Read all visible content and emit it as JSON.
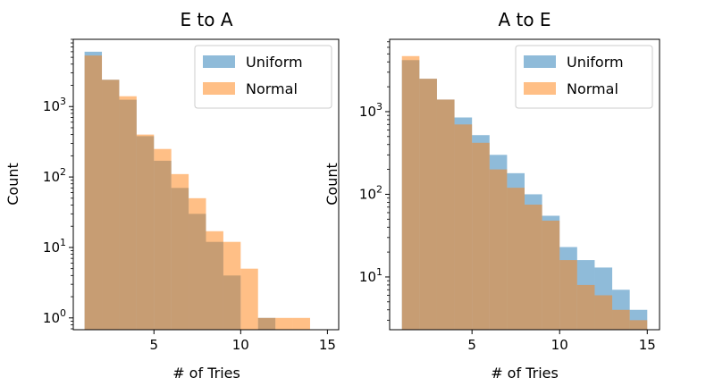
{
  "chart_data": [
    {
      "type": "bar",
      "title": "E to A",
      "xlabel": "# of Tries",
      "ylabel": "Count",
      "yscale": "log",
      "xlim": [
        0.35,
        15.65
      ],
      "ylim": [
        0.68,
        9000
      ],
      "xticks": [
        5,
        10,
        15
      ],
      "yticks": [
        {
          "value": 1,
          "base": "10",
          "exp": "0"
        },
        {
          "value": 10,
          "base": "10",
          "exp": "1"
        },
        {
          "value": 100,
          "base": "10",
          "exp": "2"
        },
        {
          "value": 1000,
          "base": "10",
          "exp": "3"
        }
      ],
      "legend_position": "upper right",
      "series": [
        {
          "name": "Uniform",
          "color": "#1f77b4",
          "bins": [
            [
              1,
              2
            ],
            [
              2,
              3
            ],
            [
              3,
              4
            ],
            [
              4,
              5
            ],
            [
              5,
              6
            ],
            [
              6,
              7
            ],
            [
              7,
              8
            ],
            [
              8,
              9
            ],
            [
              9,
              10
            ],
            [
              10,
              11
            ],
            [
              11,
              12
            ],
            [
              12,
              13
            ],
            [
              13,
              14
            ]
          ],
          "values": [
            6000,
            2400,
            1250,
            380,
            170,
            70,
            30,
            12,
            4,
            0,
            1,
            0,
            0
          ]
        },
        {
          "name": "Normal",
          "color": "#ff7f0e",
          "bins": [
            [
              1,
              2
            ],
            [
              2,
              3
            ],
            [
              3,
              4
            ],
            [
              4,
              5
            ],
            [
              5,
              6
            ],
            [
              6,
              7
            ],
            [
              7,
              8
            ],
            [
              8,
              9
            ],
            [
              9,
              10
            ],
            [
              10,
              11
            ],
            [
              11,
              12
            ],
            [
              12,
              13
            ],
            [
              13,
              14
            ]
          ],
          "values": [
            5300,
            2400,
            1400,
            400,
            250,
            110,
            50,
            17,
            12,
            5,
            1,
            1,
            1
          ]
        }
      ]
    },
    {
      "type": "bar",
      "title": "A to E",
      "xlabel": "# of Tries",
      "ylabel": "Count",
      "yscale": "log",
      "xlim": [
        0.3,
        15.7
      ],
      "ylim": [
        2.3,
        7500
      ],
      "xticks": [
        5,
        10,
        15
      ],
      "yticks": [
        {
          "value": 10,
          "base": "10",
          "exp": "1"
        },
        {
          "value": 100,
          "base": "10",
          "exp": "2"
        },
        {
          "value": 1000,
          "base": "10",
          "exp": "3"
        }
      ],
      "legend_position": "upper right",
      "series": [
        {
          "name": "Uniform",
          "color": "#1f77b4",
          "bins": [
            [
              1,
              2
            ],
            [
              2,
              3
            ],
            [
              3,
              4
            ],
            [
              4,
              5
            ],
            [
              5,
              6
            ],
            [
              6,
              7
            ],
            [
              7,
              8
            ],
            [
              8,
              9
            ],
            [
              9,
              10
            ],
            [
              10,
              11
            ],
            [
              11,
              12
            ],
            [
              12,
              13
            ],
            [
              13,
              14
            ],
            [
              14,
              15
            ]
          ],
          "values": [
            4200,
            2500,
            1400,
            850,
            520,
            300,
            180,
            100,
            55,
            23,
            16,
            13,
            7,
            4
          ]
        },
        {
          "name": "Normal",
          "color": "#ff7f0e",
          "bins": [
            [
              1,
              2
            ],
            [
              2,
              3
            ],
            [
              3,
              4
            ],
            [
              4,
              5
            ],
            [
              5,
              6
            ],
            [
              6,
              7
            ],
            [
              7,
              8
            ],
            [
              8,
              9
            ],
            [
              9,
              10
            ],
            [
              10,
              11
            ],
            [
              11,
              12
            ],
            [
              12,
              13
            ],
            [
              13,
              14
            ],
            [
              14,
              15
            ]
          ],
          "values": [
            4700,
            2500,
            1400,
            700,
            420,
            200,
            120,
            75,
            48,
            16,
            8,
            6,
            4,
            3
          ]
        }
      ]
    }
  ]
}
